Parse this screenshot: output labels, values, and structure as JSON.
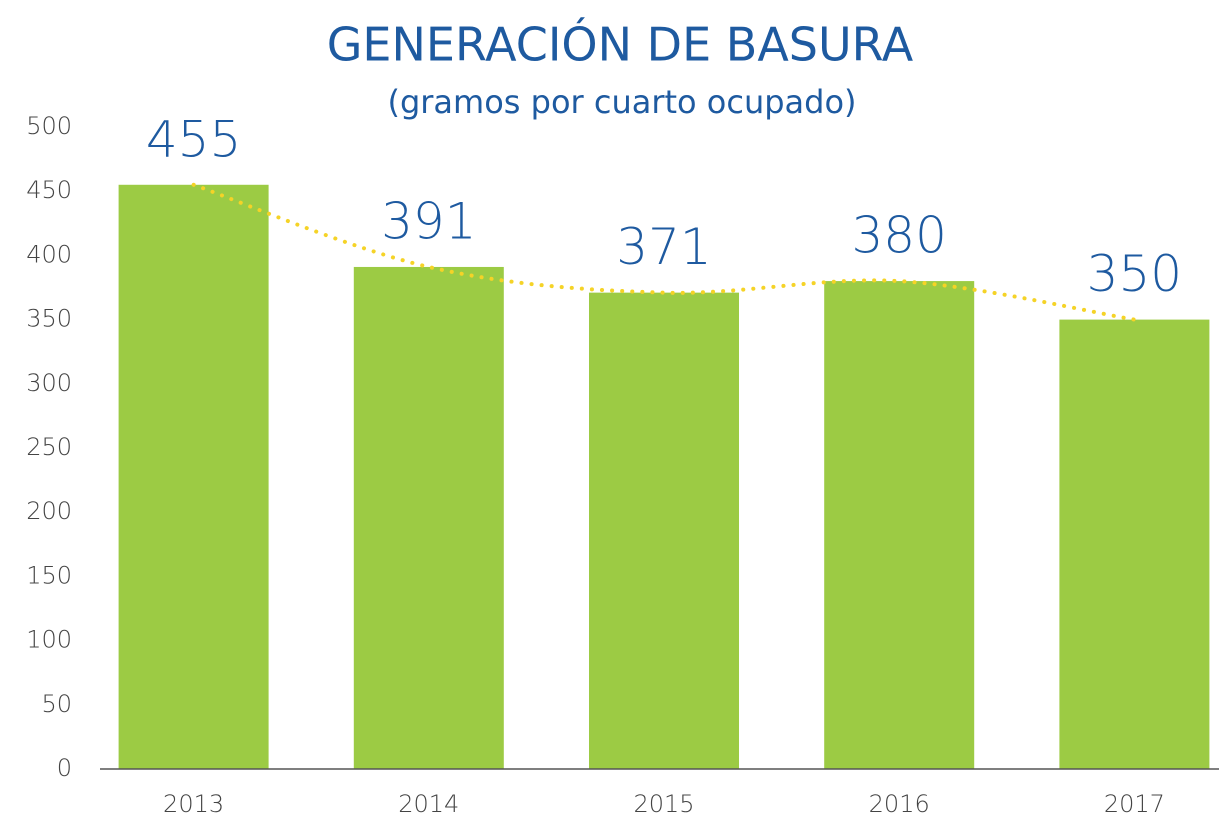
{
  "chart_data": {
    "type": "bar",
    "title": "GENERACIÓN DE BASURA",
    "subtitle": "(gramos por cuarto ocupado)",
    "categories": [
      "2013",
      "2014",
      "2015",
      "2016",
      "2017"
    ],
    "values": [
      455,
      391,
      371,
      380,
      350
    ],
    "color": "#9ccb44",
    "trendline_color": "#f5d327",
    "ylim": [
      0,
      500
    ],
    "yticks": [
      0,
      50,
      100,
      150,
      200,
      250,
      300,
      350,
      400,
      450,
      500
    ],
    "grid": false
  }
}
